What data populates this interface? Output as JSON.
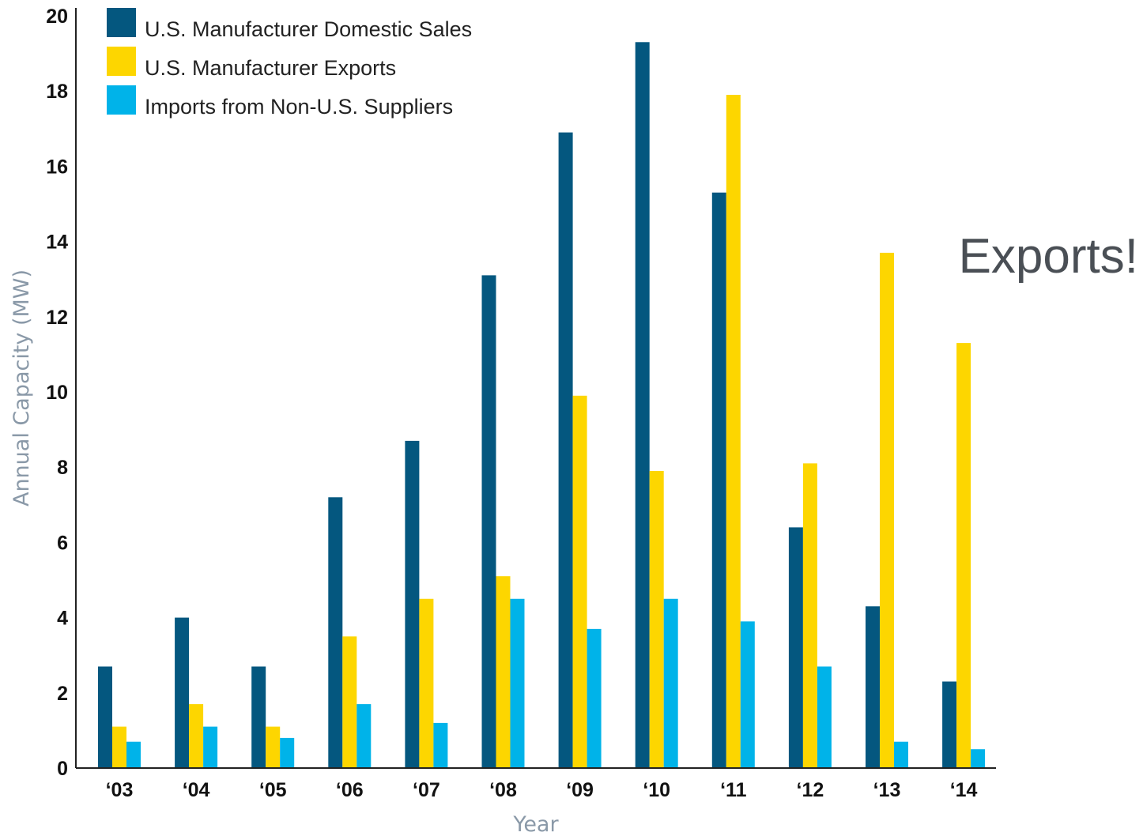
{
  "chart_data": {
    "type": "bar",
    "categories": [
      "‘03",
      "‘04",
      "‘05",
      "‘06",
      "‘07",
      "‘08",
      "‘09",
      "‘10",
      "‘11",
      "‘12",
      "‘13",
      "‘14"
    ],
    "series": [
      {
        "name": "U.S. Manufacturer Domestic Sales",
        "color": "#04577f",
        "values": [
          2.7,
          4.0,
          2.7,
          7.2,
          8.7,
          13.1,
          16.9,
          19.3,
          15.3,
          6.4,
          4.3,
          2.3
        ]
      },
      {
        "name": "U.S. Manufacturer Exports",
        "color": "#fdd600",
        "values": [
          1.1,
          1.7,
          1.1,
          3.5,
          4.5,
          5.1,
          9.9,
          7.9,
          17.9,
          8.1,
          13.7,
          11.3
        ]
      },
      {
        "name": "Imports from Non-U.S. Suppliers",
        "color": "#00b3e9",
        "values": [
          0.7,
          1.1,
          0.8,
          1.7,
          1.2,
          4.5,
          3.7,
          4.5,
          3.9,
          2.7,
          0.7,
          0.5
        ]
      }
    ],
    "yticks": [
      0,
      2,
      4,
      6,
      8,
      10,
      12,
      14,
      16,
      18,
      20
    ],
    "ylim": [
      0,
      20
    ],
    "xlabel": "Year",
    "ylabel": "Annual Capacity (MW)",
    "legend_position": "top-left",
    "grid": false,
    "annotation": "Exports!"
  }
}
